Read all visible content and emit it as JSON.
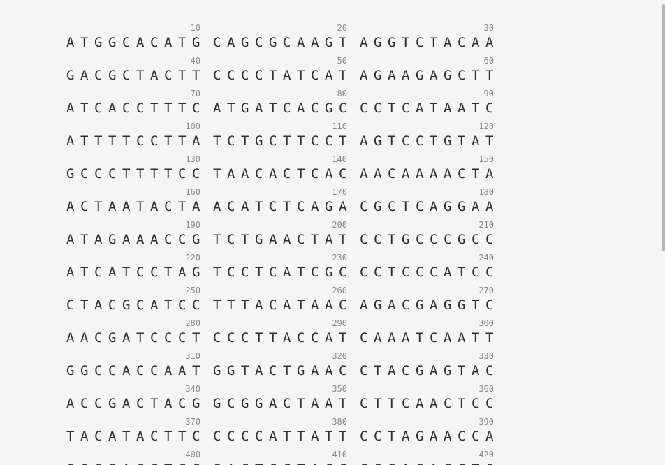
{
  "sequence_viewer": {
    "rows": [
      {
        "label_right": "10",
        "label_mid": "20",
        "label_end": "30",
        "groups": [
          "ATGGCACATG",
          "CAGCGCAAGT",
          "AGGTCTACAA"
        ]
      },
      {
        "label_right": "40",
        "label_mid": "50",
        "label_end": "60",
        "groups": [
          "GACGCTACTT",
          "CCCCTATCAT",
          "AGAAGAGCTT"
        ]
      },
      {
        "label_right": "70",
        "label_mid": "80",
        "label_end": "90",
        "groups": [
          "ATCACCTTTC",
          "ATGATCACGC",
          "CCTCATAATC"
        ]
      },
      {
        "label_right": "100",
        "label_mid": "110",
        "label_end": "120",
        "groups": [
          "ATTTTCCTTA",
          "TCTGCTTCCT",
          "AGTCCTGTAT"
        ]
      },
      {
        "label_right": "130",
        "label_mid": "140",
        "label_end": "150",
        "groups": [
          "GCCCTTTTCC",
          "TAACACTCAC",
          "AACAAAACTA"
        ]
      },
      {
        "label_right": "160",
        "label_mid": "170",
        "label_end": "180",
        "groups": [
          "ACTAATACTA",
          "ACATCTCAGA",
          "CGCTCAGGAA"
        ]
      },
      {
        "label_right": "190",
        "label_mid": "200",
        "label_end": "210",
        "groups": [
          "ATAGAAACCG",
          "TCTGAACTAT",
          "CCTGCCCGCC"
        ]
      },
      {
        "label_right": "220",
        "label_mid": "230",
        "label_end": "240",
        "groups": [
          "ATCATCCTAG",
          "TCCTCATCGC",
          "CCTCCCATCC"
        ]
      },
      {
        "label_right": "250",
        "label_mid": "260",
        "label_end": "270",
        "groups": [
          "CTACGCATCC",
          "TTTACATAAC",
          "AGACGAGGTC"
        ]
      },
      {
        "label_right": "280",
        "label_mid": "290",
        "label_end": "300",
        "groups": [
          "AACGATCCCT",
          "CCCTTACCAT",
          "CAAATCAATT"
        ]
      },
      {
        "label_right": "310",
        "label_mid": "320",
        "label_end": "330",
        "groups": [
          "GGCCACCAAT",
          "GGTACTGAAC",
          "CTACGAGTAC"
        ]
      },
      {
        "label_right": "340",
        "label_mid": "350",
        "label_end": "360",
        "groups": [
          "ACCGACTACG",
          "GCGGACTAAT",
          "CTTCAACTCC"
        ]
      },
      {
        "label_right": "370",
        "label_mid": "380",
        "label_end": "390",
        "groups": [
          "TACATACTTC",
          "CCCCATTATT",
          "CCTAGAACCA"
        ]
      },
      {
        "label_right": "400",
        "label_mid": "410",
        "label_end": "420",
        "groups": [
          "CCCGACCTCC",
          "GACTCCTACC",
          "CGGAGACCTC"
        ]
      }
    ]
  },
  "scrollbar": {
    "position": 0.0
  }
}
